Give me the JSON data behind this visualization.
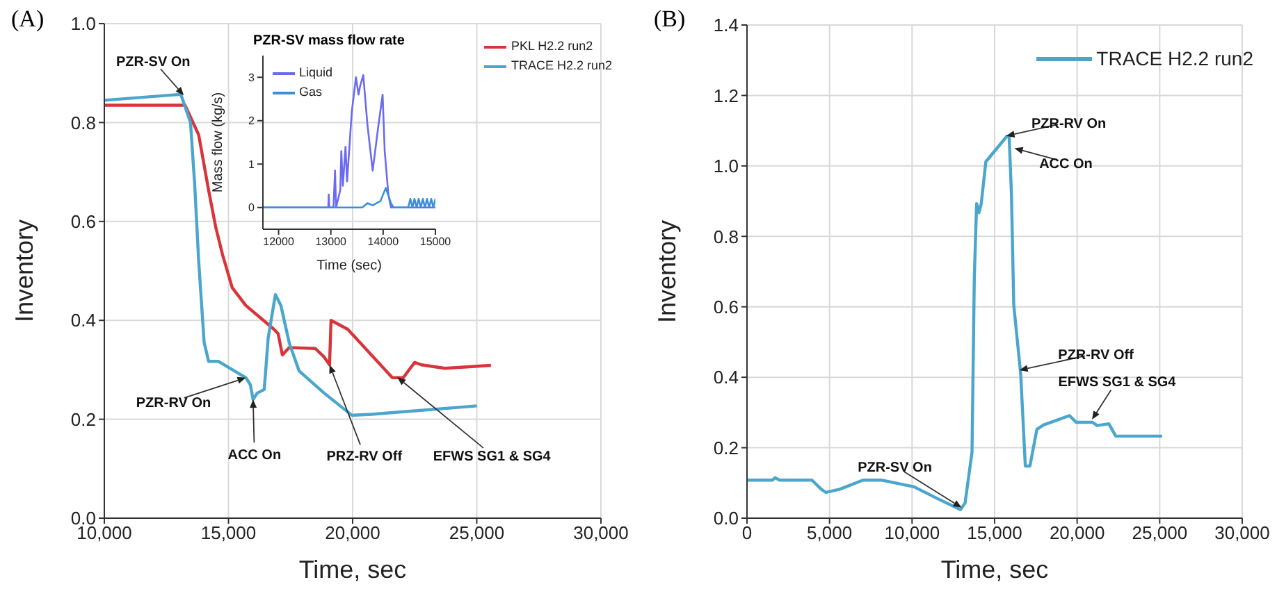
{
  "chart_data": [
    {
      "type": "line",
      "title": "(A)",
      "xlabel": "Time, sec",
      "ylabel": "Inventory",
      "xlim": [
        10000,
        30000
      ],
      "ylim": [
        0,
        1
      ],
      "xticks": [
        {
          "value": 10000,
          "label": "10,000"
        },
        {
          "value": 15000,
          "label": "15,000"
        },
        {
          "value": 20000,
          "label": "20,000"
        },
        {
          "value": 25000,
          "label": "25,000"
        },
        {
          "value": 30000,
          "label": "30,000"
        }
      ],
      "yticks": [
        {
          "value": 0,
          "label": "0.0"
        },
        {
          "value": 0.2,
          "label": "0.2"
        },
        {
          "value": 0.4,
          "label": "0.4"
        },
        {
          "value": 0.6,
          "label": "0.6"
        },
        {
          "value": 0.8,
          "label": "0.8"
        },
        {
          "value": 1,
          "label": "1.0"
        }
      ],
      "grid": true,
      "legend": "top right",
      "series": [
        {
          "name": "PKL H2.2 run2",
          "color": "#d9343a",
          "x": [
            10000,
            13250,
            13800,
            14200,
            14480,
            14760,
            15150,
            15700,
            16830,
            17000,
            17170,
            17450,
            18500,
            18850,
            19070,
            19130,
            19800,
            21600,
            22040,
            22200,
            22500,
            22770,
            23720,
            25570
          ],
          "values": [
            0.835,
            0.835,
            0.775,
            0.663,
            0.59,
            0.533,
            0.466,
            0.43,
            0.382,
            0.373,
            0.33,
            0.345,
            0.343,
            0.326,
            0.31,
            0.4,
            0.382,
            0.284,
            0.284,
            0.295,
            0.315,
            0.31,
            0.303,
            0.309
          ]
        },
        {
          "name": "TRACE H2.2 run2",
          "color": "#4ba6cc",
          "x": [
            10000,
            13080,
            13470,
            13640,
            13800,
            14020,
            14200,
            14600,
            15700,
            15880,
            15990,
            16160,
            16440,
            16600,
            16890,
            17110,
            17450,
            17840,
            18850,
            19970,
            20750,
            25000
          ],
          "values": [
            0.845,
            0.857,
            0.8,
            0.674,
            0.52,
            0.355,
            0.317,
            0.317,
            0.284,
            0.27,
            0.24,
            0.253,
            0.26,
            0.365,
            0.452,
            0.43,
            0.354,
            0.298,
            0.253,
            0.208,
            0.21,
            0.227
          ]
        }
      ],
      "annotations": [
        {
          "text": "PZR-SV On",
          "x": 13200,
          "y": 0.855
        },
        {
          "text": "PZR-RV On",
          "x": 15700,
          "y": 0.284
        },
        {
          "text": "ACC On",
          "x": 15990,
          "y": 0.24
        },
        {
          "text": "PRZ-RV Off",
          "x": 19070,
          "y": 0.31
        },
        {
          "text": "EFWS SG1 & SG4",
          "x": 21800,
          "y": 0.285
        }
      ]
    },
    {
      "type": "line",
      "title": "PZR-SV mass flow rate",
      "xlabel": "Time (sec)",
      "ylabel": "Mass flow (kg/s)",
      "xlim": [
        11700,
        15000
      ],
      "ylim": [
        -0.5,
        3.5
      ],
      "xticks": [
        12000,
        13000,
        14000,
        15000
      ],
      "yticks": [
        0,
        1,
        2,
        3
      ],
      "legend": "top left",
      "series": [
        {
          "name": "Liquid",
          "color": "#6b6bf0",
          "x": [
            11700,
            12950,
            12960,
            12970,
            13050,
            13080,
            13100,
            13180,
            13200,
            13230,
            13280,
            13310,
            13400,
            13480,
            13530,
            13560,
            13620,
            13700,
            13800,
            13900,
            13990,
            14030,
            14100,
            14150,
            15000
          ],
          "values": [
            0,
            0,
            0.3,
            0,
            0,
            0.85,
            0,
            0.4,
            1.3,
            0.5,
            1.4,
            0.6,
            2.2,
            3.0,
            2.6,
            2.8,
            3.05,
            1.9,
            0.85,
            1.8,
            2.6,
            1.3,
            0.3,
            0,
            0
          ]
        },
        {
          "name": "Gas",
          "color": "#3b8fd9",
          "x": [
            11700,
            13600,
            13700,
            13800,
            13950,
            14050,
            14150,
            14200,
            14480,
            14520,
            14560,
            14600,
            14640,
            14680,
            14720,
            14760,
            14800,
            14840,
            14880,
            14920,
            14960,
            15000
          ],
          "values": [
            0,
            0,
            0.1,
            0.05,
            0.15,
            0.45,
            0.1,
            0,
            0,
            0.2,
            0,
            0.2,
            0,
            0.2,
            0,
            0.2,
            0,
            0.2,
            0,
            0.2,
            0,
            0.2
          ]
        }
      ]
    },
    {
      "type": "line",
      "title": "(B)",
      "xlabel": "Time, sec",
      "ylabel": "Inventory",
      "xlim": [
        0,
        30000
      ],
      "ylim": [
        0,
        1.4
      ],
      "xticks": [
        0,
        {
          "value": 5000,
          "label": "5,000"
        },
        {
          "value": 10000,
          "label": "10,000"
        },
        {
          "value": 15000,
          "label": "15,000"
        },
        {
          "value": 20000,
          "label": "20,000"
        },
        {
          "value": 25000,
          "label": "25,000"
        },
        {
          "value": 30000,
          "label": "30,000"
        }
      ],
      "yticks": [
        {
          "value": 0,
          "label": "0.0"
        },
        {
          "value": 0.2,
          "label": "0.2"
        },
        {
          "value": 0.4,
          "label": "0.4"
        },
        {
          "value": 0.6,
          "label": "0.6"
        },
        {
          "value": 0.8,
          "label": "0.8"
        },
        {
          "value": 1,
          "label": "1.0"
        },
        {
          "value": 1.2,
          "label": "1.2"
        },
        {
          "value": 1.4,
          "label": "1.4"
        }
      ],
      "grid": true,
      "legend": "top right",
      "series": [
        {
          "name": "TRACE H2.2 run2",
          "color": "#4ba6cc",
          "x": [
            0,
            1545,
            1690,
            1970,
            3930,
            4500,
            4780,
            5620,
            7030,
            8150,
            10120,
            11520,
            12930,
            13210,
            13630,
            13770,
            13910,
            14050,
            14190,
            14470,
            15740,
            15880,
            16020,
            16160,
            16580,
            16860,
            17140,
            17560,
            17980,
            19530,
            19950,
            20930,
            21210,
            21920,
            22340,
            22760,
            25150
          ],
          "values": [
            0.108,
            0.108,
            0.115,
            0.108,
            0.108,
            0.082,
            0.073,
            0.082,
            0.108,
            0.108,
            0.089,
            0.056,
            0.024,
            0.043,
            0.187,
            0.683,
            0.893,
            0.867,
            0.893,
            1.012,
            1.084,
            1.084,
            0.92,
            0.605,
            0.409,
            0.148,
            0.148,
            0.252,
            0.265,
            0.291,
            0.272,
            0.272,
            0.263,
            0.268,
            0.233,
            0.233,
            0.233
          ]
        }
      ],
      "annotations": [
        {
          "text": "PZR-SV On",
          "x": 13000,
          "y": 0.03
        },
        {
          "text": "PZR-RV On",
          "x": 15700,
          "y": 1.085
        },
        {
          "text": "ACC On",
          "x": 16200,
          "y": 1.05
        },
        {
          "text": "PZR-RV Off",
          "x": 16500,
          "y": 0.42
        },
        {
          "text": "EFWS SG1 & SG4",
          "x": 20900,
          "y": 0.28
        }
      ]
    }
  ]
}
